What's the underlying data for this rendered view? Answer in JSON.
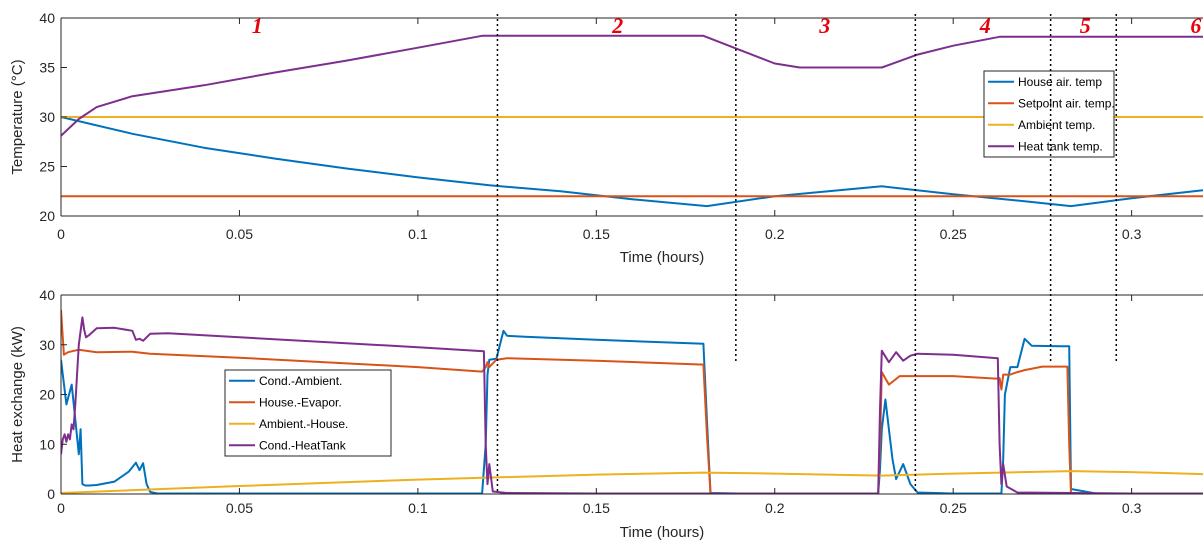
{
  "chart_data": [
    {
      "type": "line",
      "title": "",
      "xlabel": "Time (hours)",
      "ylabel": "Temperature (°C)",
      "xlim": [
        0,
        0.32
      ],
      "ylim": [
        20,
        40
      ],
      "xticks": [
        "0",
        "0.05",
        "0.1",
        "0.15",
        "0.2",
        "0.25",
        "0.3"
      ],
      "yticks": [
        "20",
        "25",
        "30",
        "35",
        "40"
      ],
      "grid": false,
      "legend_position": "right",
      "series": [
        {
          "name": "House air. temp",
          "color": "#0072BD",
          "x": [
            0,
            0.02,
            0.04,
            0.06,
            0.08,
            0.1,
            0.12,
            0.14,
            0.16,
            0.181,
            0.2,
            0.23,
            0.25,
            0.27,
            0.283,
            0.3,
            0.32
          ],
          "y": [
            30,
            28.3,
            26.9,
            25.8,
            24.8,
            23.9,
            23.1,
            22.5,
            21.7,
            21.0,
            22.0,
            23.0,
            22.2,
            21.5,
            21.0,
            21.8,
            22.6
          ]
        },
        {
          "name": "Setpoint air. temp.",
          "color": "#D95319",
          "x": [
            0,
            0.32
          ],
          "y": [
            22,
            22
          ]
        },
        {
          "name": "Ambient temp.",
          "color": "#EDB120",
          "x": [
            0,
            0.32
          ],
          "y": [
            30,
            30
          ]
        },
        {
          "name": "Heat tank temp.",
          "color": "#7E2F8E",
          "x": [
            0,
            0.005,
            0.01,
            0.02,
            0.04,
            0.06,
            0.08,
            0.1,
            0.118,
            0.15,
            0.18,
            0.19,
            0.2,
            0.207,
            0.23,
            0.24,
            0.25,
            0.263,
            0.28,
            0.32
          ],
          "y": [
            28.1,
            29.8,
            31.0,
            32.1,
            33.2,
            34.5,
            35.7,
            37.0,
            38.2,
            38.2,
            38.2,
            36.8,
            35.4,
            35.0,
            35.0,
            36.3,
            37.2,
            38.1,
            38.1,
            38.1
          ]
        }
      ]
    },
    {
      "type": "line",
      "title": "",
      "xlabel": "Time (hours)",
      "ylabel": "Heat exchange (kW)",
      "xlim": [
        0,
        0.32
      ],
      "ylim": [
        0,
        40
      ],
      "xticks": [
        "0",
        "0.05",
        "0.1",
        "0.15",
        "0.2",
        "0.25",
        "0.3"
      ],
      "yticks": [
        "0",
        "10",
        "20",
        "30",
        "40"
      ],
      "grid": false,
      "legend_position": "center-left",
      "series": [
        {
          "name": "Cond.-Ambient.",
          "color": "#0072BD",
          "x": [
            0,
            0.0015,
            0.003,
            0.004,
            0.005,
            0.0055,
            0.006,
            0.0065,
            0.0068,
            0.008,
            0.01,
            0.015,
            0.019,
            0.021,
            0.022,
            0.023,
            0.024,
            0.025,
            0.027,
            0.05,
            0.1,
            0.118,
            0.1185,
            0.119,
            0.1195,
            0.12,
            0.122,
            0.124,
            0.125,
            0.13,
            0.15,
            0.18,
            0.181,
            0.182,
            0.19,
            0.2,
            0.229,
            0.2295,
            0.23,
            0.231,
            0.232,
            0.233,
            0.234,
            0.236,
            0.238,
            0.24,
            0.25,
            0.2635,
            0.264,
            0.2645,
            0.266,
            0.268,
            0.27,
            0.272,
            0.28,
            0.2825,
            0.283,
            0.29,
            0.32
          ],
          "y": [
            27,
            18,
            22,
            15,
            8,
            13,
            2,
            1.8,
            1.7,
            1.7,
            1.8,
            2.5,
            4.5,
            6.3,
            4.8,
            6.2,
            2.0,
            0.4,
            0.1,
            0.1,
            0.1,
            0.1,
            5,
            10,
            24,
            27,
            27.2,
            32.8,
            31.8,
            31.6,
            31.0,
            30.2,
            15,
            0.2,
            0.1,
            0.1,
            0.1,
            5,
            13,
            19,
            13,
            7,
            3,
            6,
            2,
            0.3,
            0.1,
            0.1,
            7,
            20,
            25.5,
            25.5,
            31.2,
            29.8,
            29.7,
            29.7,
            1,
            0.1,
            0.1
          ]
        },
        {
          "name": "House.-Evapor.",
          "color": "#D95319",
          "x": [
            0,
            0.0008,
            0.0015,
            0.002,
            0.005,
            0.01,
            0.02,
            0.025,
            0.05,
            0.1,
            0.118,
            0.119,
            0.1195,
            0.12,
            0.122,
            0.125,
            0.15,
            0.18,
            0.181,
            0.182,
            0.2,
            0.229,
            0.2295,
            0.23,
            0.232,
            0.235,
            0.25,
            0.262,
            0.263,
            0.2635,
            0.264,
            0.266,
            0.268,
            0.27,
            0.275,
            0.282,
            0.2825,
            0.283,
            0.29,
            0.32
          ],
          "y": [
            37,
            28,
            28.3,
            28.5,
            29,
            28.5,
            28.6,
            28.2,
            27.4,
            25.5,
            24.6,
            25.5,
            26.5,
            25.5,
            27.0,
            27.3,
            26.8,
            26.0,
            12,
            0.1,
            0.1,
            0.1,
            10,
            24.5,
            22,
            23.7,
            23.7,
            23.2,
            23.3,
            21,
            24,
            24,
            24.5,
            24.9,
            25.6,
            25.6,
            10,
            0.1,
            0.1,
            0.1
          ]
        },
        {
          "name": "Ambient.-House.",
          "color": "#EDB120",
          "x": [
            0,
            0.05,
            0.1,
            0.15,
            0.18,
            0.2,
            0.23,
            0.25,
            0.283,
            0.3,
            0.32
          ],
          "y": [
            0.2,
            1.6,
            2.9,
            3.9,
            4.3,
            4.1,
            3.7,
            4.1,
            4.6,
            4.4,
            4.0
          ]
        },
        {
          "name": "Cond.-HeatTank",
          "color": "#7E2F8E",
          "x": [
            0,
            0.0005,
            0.001,
            0.0015,
            0.002,
            0.0025,
            0.003,
            0.0035,
            0.004,
            0.005,
            0.006,
            0.0065,
            0.007,
            0.008,
            0.01,
            0.015,
            0.02,
            0.021,
            0.022,
            0.023,
            0.024,
            0.025,
            0.03,
            0.05,
            0.1,
            0.1185,
            0.119,
            0.1195,
            0.12,
            0.121,
            0.125,
            0.15,
            0.18,
            0.2,
            0.229,
            0.2295,
            0.23,
            0.232,
            0.234,
            0.236,
            0.238,
            0.24,
            0.25,
            0.2625,
            0.263,
            0.2635,
            0.264,
            0.265,
            0.268,
            0.3,
            0.32
          ],
          "y": [
            8,
            11,
            12,
            10.5,
            12,
            11,
            14,
            13,
            18,
            30,
            35.5,
            33,
            31.5,
            32,
            33.3,
            33.4,
            32.8,
            31,
            31.2,
            30.8,
            31.5,
            32.2,
            32.3,
            31.5,
            29.5,
            28.7,
            10,
            2,
            6,
            0.5,
            0.2,
            0.1,
            0.1,
            0.1,
            0.1,
            17,
            28.8,
            26.5,
            28.5,
            26.8,
            27.8,
            28.2,
            28.0,
            27.3,
            10,
            2,
            6,
            1.5,
            0.3,
            0.1,
            0.1
          ]
        }
      ]
    }
  ],
  "annotations": {
    "region_labels": [
      "1",
      "2",
      "3",
      "4",
      "5",
      "6"
    ],
    "region_label_x": [
      0.055,
      0.156,
      0.214,
      0.259,
      0.287,
      0.318
    ],
    "divider_x": [
      0.1223,
      0.1891,
      0.2394,
      0.2773,
      0.2957
    ]
  }
}
